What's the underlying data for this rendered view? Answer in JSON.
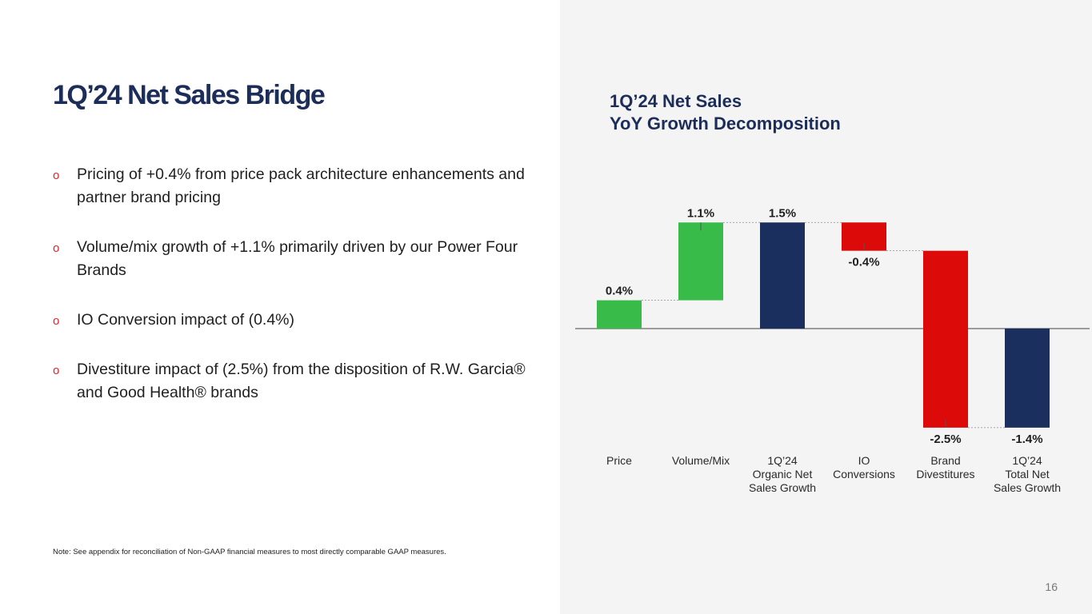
{
  "slide": {
    "title": "1Q’24 Net Sales Bridge",
    "page_number": "16",
    "note": "Note: See appendix for reconciliation of Non-GAAP financial measures to most directly comparable GAAP measures."
  },
  "bullets": [
    {
      "marker": "o",
      "text": "Pricing of +0.4% from price pack architecture enhancements and partner brand pricing"
    },
    {
      "marker": "o",
      "text": "Volume/mix growth of +1.1% primarily driven by our Power Four Brands"
    },
    {
      "marker": "o",
      "text": "IO Conversion impact of (0.4%)"
    },
    {
      "marker": "o",
      "text": "Divestiture impact of (2.5%) from the disposition of R.W. Garcia® and Good Health® brands"
    }
  ],
  "chart_data": {
    "type": "waterfall",
    "title_lines": [
      "1Q’24 Net Sales",
      "YoY Growth Decomposition"
    ],
    "units": "% YoY growth",
    "bars": [
      {
        "category_lines": [
          "Price"
        ],
        "value": 0.4,
        "start": 0.0,
        "end": 0.4,
        "label": "0.4%",
        "color": "#38bb48",
        "kind": "increase"
      },
      {
        "category_lines": [
          "Volume/Mix"
        ],
        "value": 1.1,
        "start": 0.4,
        "end": 1.5,
        "label": "1.1%",
        "color": "#38bb48",
        "kind": "increase"
      },
      {
        "category_lines": [
          "1Q’24",
          "Organic Net",
          "Sales Growth"
        ],
        "value": 1.5,
        "start": 0.0,
        "end": 1.5,
        "label": "1.5%",
        "color": "#1b2f5e",
        "kind": "total"
      },
      {
        "category_lines": [
          "IO",
          "Conversions"
        ],
        "value": -0.4,
        "start": 1.5,
        "end": 1.1,
        "label": "-0.4%",
        "color": "#dd0a0a",
        "kind": "decrease"
      },
      {
        "category_lines": [
          "Brand",
          "Divestitures"
        ],
        "value": -2.5,
        "start": 1.1,
        "end": -1.4,
        "label": "-2.5%",
        "color": "#dd0a0a",
        "kind": "decrease"
      },
      {
        "category_lines": [
          "1Q’24",
          "Total Net",
          "Sales Growth"
        ],
        "value": -1.4,
        "start": 0.0,
        "end": -1.4,
        "label": "-1.4%",
        "color": "#1b2f5e",
        "kind": "total"
      }
    ]
  }
}
